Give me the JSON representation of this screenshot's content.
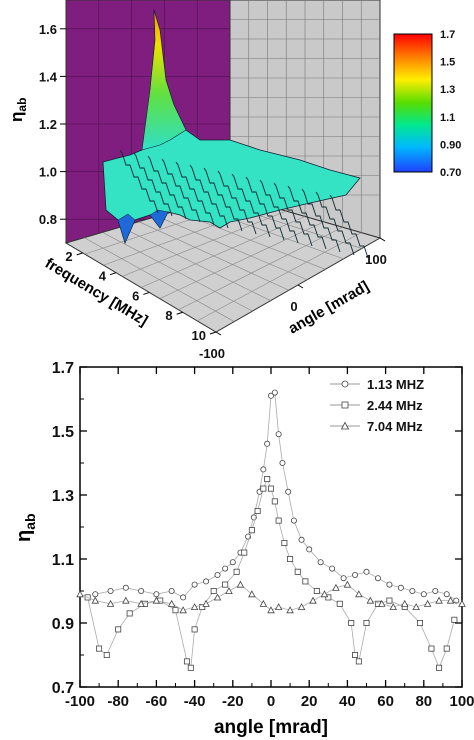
{
  "chart_data": [
    {
      "type": "surface",
      "z_label": "η",
      "z_label_sub": "ab",
      "x_label": "frequency [MHz]",
      "y_label": "angle [mrad]",
      "z_ticks": [
        "0.8",
        "1.0",
        "1.2",
        "1.4",
        "1.6"
      ],
      "x_ticks": [
        "2",
        "4",
        "6",
        "8",
        "10"
      ],
      "y_ticks": [
        "100",
        "0",
        "-100"
      ],
      "zlim": [
        0.7,
        1.7
      ],
      "xlim": [
        1,
        10
      ],
      "ylim": [
        -100,
        100
      ],
      "colorbar": {
        "ticks": [
          "1.7",
          "1.5",
          "1.3",
          "1.1",
          "0.90",
          "0.70"
        ],
        "range": [
          0.7,
          1.7
        ],
        "colors": [
          "#ff0000",
          "#ff8800",
          "#ffee00",
          "#55dd00",
          "#00e890",
          "#00b8ff",
          "#2040ff"
        ]
      },
      "left_wall_color": "#7f1e7f",
      "surface_color": "#34e2c4",
      "peak": {
        "frequency": 1.13,
        "angle": 0,
        "value": 1.63
      }
    },
    {
      "type": "scatter",
      "ylabel": "η",
      "ylabel_sub": "ab",
      "xlabel": "angle [mrad]",
      "xlim": [
        -100,
        100
      ],
      "ylim": [
        0.7,
        1.7
      ],
      "x_ticks": [
        "-100",
        "-80",
        "-60",
        "-40",
        "-20",
        "0",
        "20",
        "40",
        "60",
        "80",
        "100"
      ],
      "y_ticks": [
        "0.7",
        "0.9",
        "1.1",
        "1.3",
        "1.5",
        "1.7"
      ],
      "legend_position": "top-right",
      "series": [
        {
          "name": "1.13 MHZ",
          "marker": "circle",
          "x": [
            -92,
            -84,
            -76,
            -68,
            -60,
            -52,
            -46,
            -40,
            -34,
            -28,
            -24,
            -20,
            -16,
            -12,
            -9,
            -6,
            -4,
            -2,
            0,
            2,
            4,
            6,
            9,
            12,
            16,
            20,
            26,
            32,
            38,
            44,
            50,
            56,
            62,
            68,
            74,
            80,
            86,
            92,
            97
          ],
          "y": [
            0.99,
            1.0,
            1.01,
            1.0,
            0.99,
            1.0,
            0.98,
            1.02,
            1.03,
            1.05,
            1.07,
            1.09,
            1.12,
            1.17,
            1.23,
            1.31,
            1.38,
            1.46,
            1.61,
            1.62,
            1.49,
            1.4,
            1.31,
            1.22,
            1.16,
            1.13,
            1.09,
            1.07,
            1.04,
            1.05,
            1.06,
            1.04,
            1.02,
            1.01,
            1.0,
            0.99,
            1.0,
            0.99,
            0.97
          ]
        },
        {
          "name": "2.44 MHz",
          "marker": "square",
          "x": [
            -96,
            -90,
            -86,
            -80,
            -74,
            -66,
            -58,
            -50,
            -44,
            -42,
            -40,
            -36,
            -30,
            -24,
            -18,
            -14,
            -10,
            -7,
            -4,
            -2,
            0,
            2,
            4,
            7,
            10,
            14,
            18,
            24,
            30,
            36,
            42,
            44,
            46,
            50,
            56,
            62,
            70,
            78,
            84,
            88,
            92,
            96
          ],
          "y": [
            0.98,
            0.82,
            0.8,
            0.88,
            0.93,
            0.96,
            0.97,
            0.94,
            0.78,
            0.76,
            0.88,
            0.95,
            1.0,
            1.02,
            1.06,
            1.12,
            1.19,
            1.25,
            1.32,
            1.35,
            1.32,
            1.28,
            1.22,
            1.15,
            1.1,
            1.06,
            1.03,
            1.0,
            0.98,
            0.96,
            0.9,
            0.8,
            0.78,
            0.9,
            0.96,
            0.97,
            0.95,
            0.9,
            0.82,
            0.76,
            0.82,
            0.91
          ]
        },
        {
          "name": "7.04 MHz",
          "marker": "triangle",
          "x": [
            -100,
            -92,
            -84,
            -76,
            -68,
            -60,
            -52,
            -46,
            -40,
            -34,
            -28,
            -22,
            -16,
            -10,
            -4,
            0,
            4,
            10,
            16,
            22,
            28,
            34,
            40,
            46,
            52,
            58,
            64,
            70,
            76,
            82,
            88,
            94,
            100
          ],
          "y": [
            0.99,
            0.97,
            0.96,
            0.97,
            0.96,
            0.97,
            0.96,
            0.94,
            0.95,
            0.96,
            0.98,
            1.0,
            1.02,
            0.99,
            0.96,
            0.94,
            0.95,
            0.94,
            0.95,
            0.97,
            0.99,
            1.01,
            1.02,
            0.99,
            0.97,
            0.96,
            0.95,
            0.96,
            0.95,
            0.96,
            0.97,
            0.97,
            0.96
          ]
        }
      ]
    }
  ]
}
